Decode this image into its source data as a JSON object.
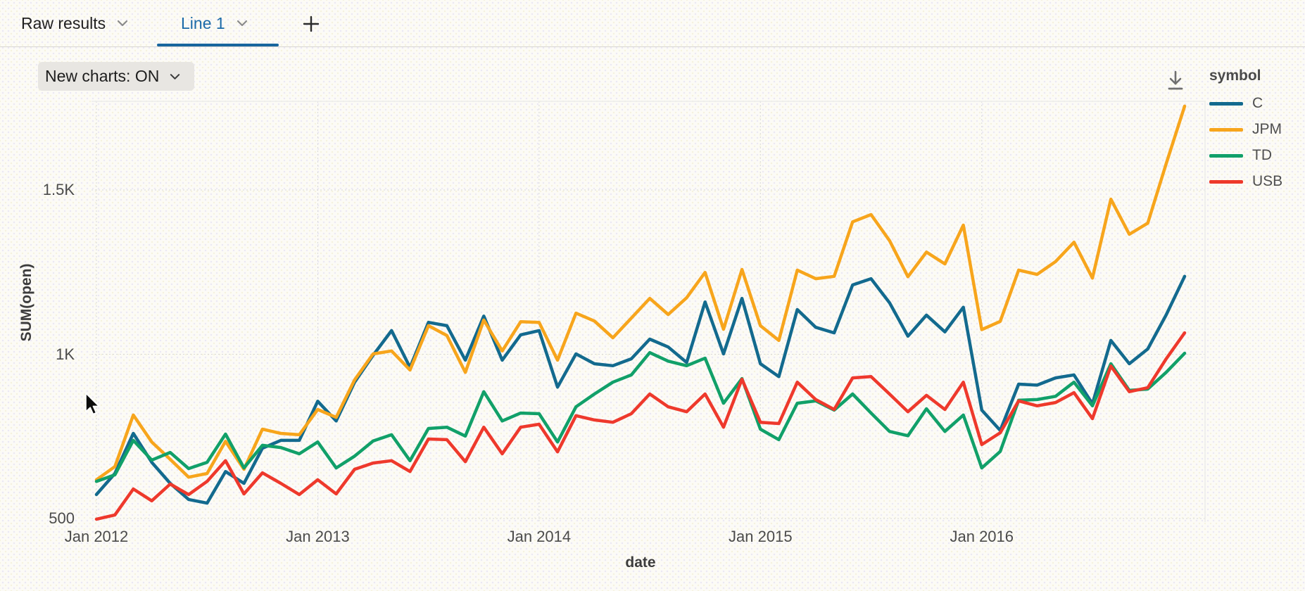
{
  "tab_bar": {
    "tabs": [
      {
        "label": "Raw results",
        "active": false
      },
      {
        "label": "Line 1",
        "active": true
      }
    ],
    "add_tab": "+"
  },
  "toolbar": {
    "new_charts_label": "New charts: ON"
  },
  "colors": {
    "active_tab": "#1b6aa8",
    "tab_underline": "#17659e",
    "inactive_tab": "#202020",
    "page_background": "#fcfbf6",
    "grid": "#d9d9d9"
  },
  "chart_data": {
    "type": "line",
    "legend_title": "symbol",
    "legend_position": "right",
    "grid": "dotted",
    "x_axis": {
      "title": "date",
      "ticks": [
        {
          "index": 0,
          "label": "Jan 2012"
        },
        {
          "index": 12,
          "label": "Jan 2013"
        },
        {
          "index": 24,
          "label": "Jan 2014"
        },
        {
          "index": 36,
          "label": "Jan 2015"
        },
        {
          "index": 48,
          "label": "Jan 2016"
        }
      ]
    },
    "y_axis": {
      "title": "SUM(open)",
      "ticks": [
        {
          "value": 500,
          "label": "500"
        },
        {
          "value": 1000,
          "label": "1K"
        },
        {
          "value": 1500,
          "label": "1.5K"
        }
      ],
      "range": [
        489,
        1771
      ]
    },
    "x_months": [
      "2012-01",
      "2012-02",
      "2012-03",
      "2012-04",
      "2012-05",
      "2012-06",
      "2012-07",
      "2012-08",
      "2012-09",
      "2012-10",
      "2012-11",
      "2012-12",
      "2013-01",
      "2013-02",
      "2013-03",
      "2013-04",
      "2013-05",
      "2013-06",
      "2013-07",
      "2013-08",
      "2013-09",
      "2013-10",
      "2013-11",
      "2013-12",
      "2014-01",
      "2014-02",
      "2014-03",
      "2014-04",
      "2014-05",
      "2014-06",
      "2014-07",
      "2014-08",
      "2014-09",
      "2014-10",
      "2014-11",
      "2014-12",
      "2015-01",
      "2015-02",
      "2015-03",
      "2015-04",
      "2015-05",
      "2015-06",
      "2015-07",
      "2015-08",
      "2015-09",
      "2015-10",
      "2015-11",
      "2015-12",
      "2016-01",
      "2016-02",
      "2016-03",
      "2016-04",
      "2016-05",
      "2016-06",
      "2016-07",
      "2016-08",
      "2016-09",
      "2016-10",
      "2016-11",
      "2016-12"
    ],
    "series": [
      {
        "name": "C",
        "color": "#136a8e",
        "values": [
          573,
          637,
          759,
          671,
          607,
          558,
          547,
          643,
          607,
          714,
          738,
          738,
          857,
          797,
          915,
          997,
          1072,
          960,
          1097,
          1087,
          982,
          1116,
          982,
          1059,
          1072,
          900,
          1001,
          971,
          965,
          986,
          1046,
          1022,
          975,
          1159,
          1001,
          1170,
          971,
          932,
          1136,
          1082,
          1065,
          1211,
          1230,
          1157,
          1055,
          1119,
          1068,
          1143,
          830,
          768,
          909,
          906,
          928,
          937,
          849,
          1042,
          971,
          1016,
          1120,
          1237
        ]
      },
      {
        "name": "JPM",
        "color": "#f7a51c",
        "values": [
          618,
          658,
          815,
          733,
          680,
          626,
          637,
          735,
          650,
          772,
          759,
          755,
          832,
          808,
          922,
          1001,
          1010,
          952,
          1087,
          1057,
          945,
          1104,
          1010,
          1099,
          1097,
          982,
          1125,
          1101,
          1050,
          1110,
          1170,
          1121,
          1172,
          1249,
          1076,
          1258,
          1087,
          1042,
          1256,
          1230,
          1237,
          1403,
          1425,
          1346,
          1236,
          1311,
          1275,
          1393,
          1075,
          1100,
          1256,
          1243,
          1282,
          1341,
          1232,
          1472,
          1365,
          1399,
          1580,
          1755
        ]
      },
      {
        "name": "TD",
        "color": "#11a069",
        "values": [
          613,
          633,
          738,
          678,
          701,
          652,
          671,
          757,
          654,
          723,
          716,
          697,
          733,
          654,
          690,
          736,
          755,
          676,
          774,
          778,
          751,
          886,
          797,
          821,
          819,
          733,
          840,
          879,
          915,
          937,
          1005,
          979,
          965,
          988,
          851,
          926,
          772,
          740,
          851,
          858,
          830,
          879,
          821,
          765,
          752,
          834,
          765,
          815,
          654,
          704,
          860,
          862,
          872,
          915,
          843,
          971,
          890,
          894,
          945,
          1003
        ]
      },
      {
        "name": "USB",
        "color": "#ee392c",
        "values": [
          498,
          511,
          590,
          554,
          605,
          573,
          613,
          676,
          575,
          639,
          607,
          573,
          618,
          575,
          650,
          669,
          676,
          643,
          742,
          740,
          673,
          778,
          697,
          778,
          787,
          703,
          813,
          800,
          793,
          819,
          879,
          840,
          825,
          879,
          778,
          924,
          793,
          789,
          915,
          862,
          832,
          928,
          932,
          879,
          825,
          875,
          832,
          915,
          725,
          761,
          858,
          843,
          853,
          883,
          804,
          964,
          886,
          898,
          986,
          1065
        ]
      }
    ]
  }
}
